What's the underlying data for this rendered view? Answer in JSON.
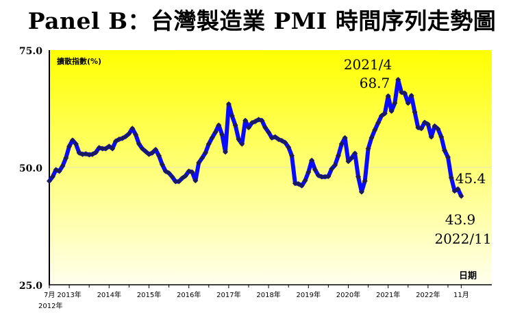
{
  "chart_data": {
    "type": "line",
    "title": "Panel B：台灣製造業 PMI 時間序列走勢圖",
    "ylabel": "擴散指數(%)",
    "xlabel": "日期",
    "ylim": [
      25,
      75
    ],
    "yticks": [
      {
        "value": 75,
        "label": "75.0"
      },
      {
        "value": 50,
        "label": "50.0"
      },
      {
        "value": 25,
        "label": "25.0"
      }
    ],
    "xlim": [
      2012.5,
      2023.6
    ],
    "xticks": [
      {
        "value": 2012.5,
        "label": "7月"
      },
      {
        "value": 2013.0,
        "label": "2013年"
      },
      {
        "value": 2014.0,
        "label": "2014年"
      },
      {
        "value": 2015.0,
        "label": "2015年"
      },
      {
        "value": 2016.0,
        "label": "2016年"
      },
      {
        "value": 2017.0,
        "label": "2017年"
      },
      {
        "value": 2018.0,
        "label": "2018年"
      },
      {
        "value": 2019.0,
        "label": "2019年"
      },
      {
        "value": 2020.0,
        "label": "2020年"
      },
      {
        "value": 2021.0,
        "label": "2021年"
      },
      {
        "value": 2022.0,
        "label": "2022年"
      },
      {
        "value": 2022.833,
        "label": "11月"
      }
    ],
    "xtick_extra_label": "2012年",
    "grid": false,
    "background_gradient": [
      "#ffff00",
      "#ffffee"
    ],
    "series_color": "#0a0aff",
    "marker_color": "#1a1a60",
    "x": [
      "2012-07",
      "2012-08",
      "2012-09",
      "2012-10",
      "2012-11",
      "2012-12",
      "2013-01",
      "2013-02",
      "2013-03",
      "2013-04",
      "2013-05",
      "2013-06",
      "2013-07",
      "2013-08",
      "2013-09",
      "2013-10",
      "2013-11",
      "2013-12",
      "2014-01",
      "2014-02",
      "2014-03",
      "2014-04",
      "2014-05",
      "2014-06",
      "2014-07",
      "2014-08",
      "2014-09",
      "2014-10",
      "2014-11",
      "2014-12",
      "2015-01",
      "2015-02",
      "2015-03",
      "2015-04",
      "2015-05",
      "2015-06",
      "2015-07",
      "2015-08",
      "2015-09",
      "2015-10",
      "2015-11",
      "2015-12",
      "2016-01",
      "2016-02",
      "2016-03",
      "2016-04",
      "2016-05",
      "2016-06",
      "2016-07",
      "2016-08",
      "2016-09",
      "2016-10",
      "2016-11",
      "2016-12",
      "2017-01",
      "2017-02",
      "2017-03",
      "2017-04",
      "2017-05",
      "2017-06",
      "2017-07",
      "2017-08",
      "2017-09",
      "2017-10",
      "2017-11",
      "2017-12",
      "2018-01",
      "2018-02",
      "2018-03",
      "2018-04",
      "2018-05",
      "2018-06",
      "2018-07",
      "2018-08",
      "2018-09",
      "2018-10",
      "2018-11",
      "2018-12",
      "2019-01",
      "2019-02",
      "2019-03",
      "2019-04",
      "2019-05",
      "2019-06",
      "2019-07",
      "2019-08",
      "2019-09",
      "2019-10",
      "2019-11",
      "2019-12",
      "2020-01",
      "2020-02",
      "2020-03",
      "2020-04",
      "2020-05",
      "2020-06",
      "2020-07",
      "2020-08",
      "2020-09",
      "2020-10",
      "2020-11",
      "2020-12",
      "2021-01",
      "2021-02",
      "2021-03",
      "2021-04",
      "2021-05",
      "2021-06",
      "2021-07",
      "2021-08",
      "2021-09",
      "2021-10",
      "2021-11",
      "2021-12",
      "2022-01",
      "2022-02",
      "2022-03",
      "2022-04",
      "2022-05",
      "2022-06",
      "2022-07",
      "2022-08",
      "2022-09",
      "2022-10",
      "2022-11"
    ],
    "values": [
      47.1,
      48.0,
      49.5,
      49.2,
      50.3,
      52.0,
      54.5,
      55.8,
      55.0,
      53.1,
      52.8,
      52.9,
      52.7,
      52.8,
      53.2,
      54.2,
      54.0,
      54.0,
      54.5,
      54.0,
      55.6,
      56.0,
      56.2,
      56.6,
      57.2,
      58.3,
      57.0,
      55.0,
      54.0,
      53.4,
      52.8,
      53.1,
      53.8,
      52.5,
      50.6,
      49.2,
      48.8,
      48.0,
      47.0,
      47.0,
      47.7,
      48.2,
      49.2,
      49.0,
      47.2,
      51.0,
      52.0,
      53.1,
      55.0,
      56.3,
      57.5,
      59.0,
      57.0,
      53.3,
      63.5,
      61.0,
      59.0,
      56.0,
      55.0,
      60.0,
      58.5,
      59.5,
      59.8,
      60.2,
      60.0,
      58.5,
      57.5,
      56.3,
      56.5,
      56.0,
      55.7,
      55.3,
      54.3,
      52.5,
      46.6,
      46.5,
      46.1,
      47.2,
      49.0,
      51.5,
      49.5,
      48.3,
      48.0,
      48.0,
      48.1,
      49.7,
      50.5,
      52.5,
      55.0,
      56.3,
      51.3,
      52.0,
      53.0,
      48.0,
      44.8,
      47.1,
      54.0,
      56.3,
      58.0,
      59.5,
      61.0,
      61.5,
      65.2,
      62.0,
      63.7,
      68.7,
      66.0,
      65.8,
      63.7,
      65.3,
      61.8,
      58.5,
      58.3,
      59.6,
      59.2,
      56.5,
      58.8,
      58.2,
      56.5,
      53.6,
      52.2,
      47.8,
      45.0,
      45.4,
      43.9
    ],
    "annotations": [
      {
        "text": "2021/4",
        "for": "2021-04",
        "position": "above"
      },
      {
        "text": "68.7",
        "for": "2021-04",
        "position": "above"
      },
      {
        "text": "45.4",
        "for": "2022-10",
        "position": "right"
      },
      {
        "text": "43.9",
        "for": "2022-11",
        "position": "below"
      },
      {
        "text": "2022/11",
        "for": "2022-11",
        "position": "below"
      }
    ]
  }
}
